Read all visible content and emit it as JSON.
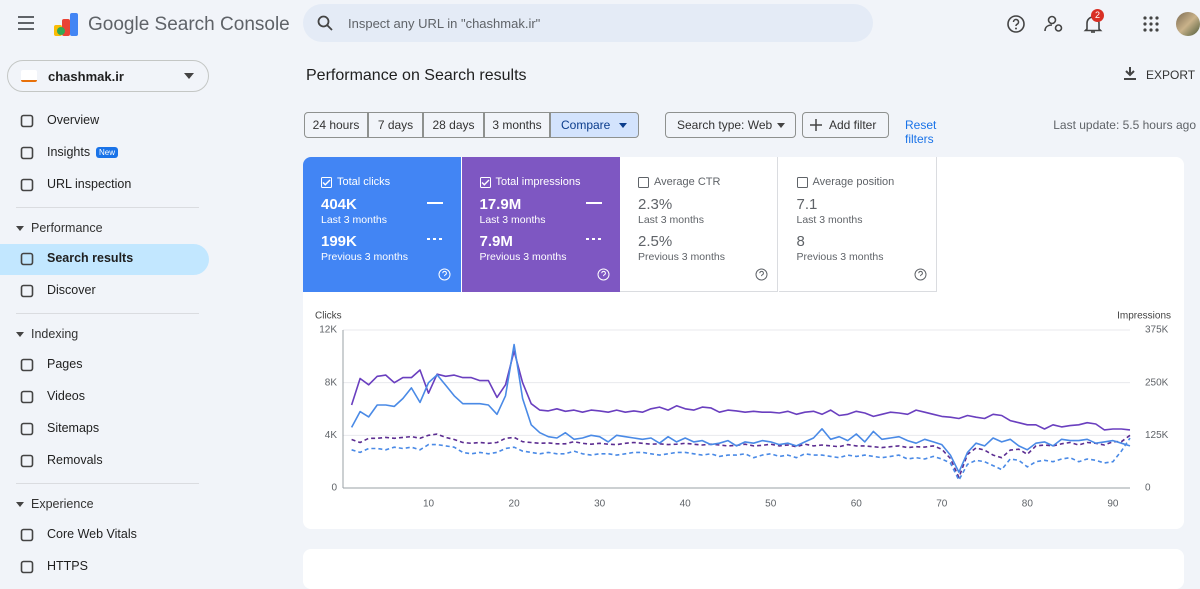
{
  "header": {
    "product": "Google Search Console",
    "search_placeholder": "Inspect any URL in \"chashmak.ir\"",
    "notifications": 2
  },
  "property": "chashmak.ir",
  "nav": [
    {
      "items": [
        {
          "label": "Overview"
        },
        {
          "label": "Insights",
          "badge": "New"
        },
        {
          "label": "URL inspection"
        }
      ]
    },
    {
      "section": "Performance",
      "items": [
        {
          "label": "Search results",
          "active": true
        },
        {
          "label": "Discover"
        }
      ]
    },
    {
      "section": "Indexing",
      "items": [
        {
          "label": "Pages"
        },
        {
          "label": "Videos"
        },
        {
          "label": "Sitemaps"
        },
        {
          "label": "Removals"
        }
      ]
    },
    {
      "section": "Experience",
      "items": [
        {
          "label": "Core Web Vitals"
        },
        {
          "label": "HTTPS"
        }
      ]
    }
  ],
  "page_title": "Performance on Search results",
  "export": "EXPORT",
  "filters": {
    "ranges": [
      "24 hours",
      "7 days",
      "28 days",
      "3 months"
    ],
    "compare": "Compare",
    "search_type": "Search type: Web",
    "add_filter": "Add filter",
    "reset": "Reset filters",
    "last_update": "Last update: 5.5 hours ago"
  },
  "metrics": [
    {
      "label": "Total clicks",
      "current": "404K",
      "current_period": "Last 3 months",
      "previous": "199K",
      "previous_period": "Previous 3 months",
      "selected": true,
      "color": "#4285f4"
    },
    {
      "label": "Total impressions",
      "current": "17.9M",
      "current_period": "Last 3 months",
      "previous": "7.9M",
      "previous_period": "Previous 3 months",
      "selected": true,
      "color": "#7e57c2"
    },
    {
      "label": "Average CTR",
      "current": "2.3%",
      "current_period": "Last 3 months",
      "previous": "2.5%",
      "previous_period": "Previous 3 months",
      "selected": false,
      "color": "#5f6368"
    },
    {
      "label": "Average position",
      "current": "7.1",
      "current_period": "Last 3 months",
      "previous": "8",
      "previous_period": "Previous 3 months",
      "selected": false,
      "color": "#5f6368"
    }
  ],
  "chart_data": {
    "type": "line",
    "y_label": "Clicks",
    "y2_label": "Impressions",
    "grid": true,
    "x": [
      1,
      2,
      3,
      4,
      5,
      6,
      7,
      8,
      9,
      10,
      11,
      12,
      13,
      14,
      15,
      16,
      17,
      18,
      19,
      20,
      21,
      22,
      23,
      24,
      25,
      26,
      27,
      28,
      29,
      30,
      31,
      32,
      33,
      34,
      35,
      36,
      37,
      38,
      39,
      40,
      41,
      42,
      43,
      44,
      45,
      46,
      47,
      48,
      49,
      50,
      51,
      52,
      53,
      54,
      55,
      56,
      57,
      58,
      59,
      60,
      61,
      62,
      63,
      64,
      65,
      66,
      67,
      68,
      69,
      70,
      71,
      72,
      73,
      74,
      75,
      76,
      77,
      78,
      79,
      80,
      81,
      82,
      83,
      84,
      85,
      86,
      87,
      88,
      89,
      90,
      91,
      92
    ],
    "xlim": [
      0,
      92
    ],
    "xticks": [
      10,
      20,
      30,
      40,
      50,
      60,
      70,
      80,
      90
    ],
    "ylim": [
      0,
      12000
    ],
    "yticks": [
      0,
      {
        "value": 4000,
        "label": "4K"
      },
      {
        "value": 8000,
        "label": "8K"
      },
      {
        "value": 12000,
        "label": "12K"
      }
    ],
    "y2lim": [
      0,
      375000
    ],
    "y2ticks": [
      0,
      {
        "value": 125000,
        "label": "125K"
      },
      {
        "value": 250000,
        "label": "250K"
      },
      {
        "value": 375000,
        "label": "375K"
      }
    ],
    "series": [
      {
        "color": "#6a3fbf",
        "axis": "y2",
        "dashed": false,
        "values": [
          197000,
          260000,
          245000,
          265000,
          268000,
          250000,
          262000,
          262000,
          280000,
          225000,
          270000,
          265000,
          268000,
          262000,
          262000,
          255000,
          255000,
          215000,
          245000,
          325000,
          250000,
          200000,
          185000,
          183000,
          188000,
          182000,
          185000,
          180000,
          185000,
          183000,
          180000,
          185000,
          180000,
          183000,
          180000,
          188000,
          192000,
          185000,
          195000,
          188000,
          185000,
          192000,
          190000,
          180000,
          185000,
          183000,
          180000,
          182000,
          180000,
          180000,
          178000,
          182000,
          175000,
          180000,
          182000,
          175000,
          185000,
          172000,
          175000,
          182000,
          178000,
          170000,
          175000,
          180000,
          178000,
          175000,
          185000,
          180000,
          175000,
          170000,
          168000,
          165000,
          172000,
          168000,
          165000,
          175000,
          172000,
          160000,
          155000,
          150000,
          150000,
          140000,
          150000,
          145000,
          148000,
          150000,
          155000,
          152000,
          138000,
          140000,
          140000,
          138000
        ]
      },
      {
        "color": "#5c2d91",
        "axis": "y2",
        "dashed": true,
        "values": [
          115000,
          108000,
          118000,
          118000,
          120000,
          118000,
          120000,
          122000,
          118000,
          125000,
          128000,
          120000,
          115000,
          108000,
          106000,
          108000,
          106000,
          108000,
          118000,
          120000,
          110000,
          108000,
          106000,
          107000,
          105000,
          105000,
          110000,
          106000,
          104000,
          106000,
          104000,
          103000,
          106000,
          108000,
          106000,
          104000,
          105000,
          103000,
          104000,
          106000,
          104000,
          102000,
          104000,
          102000,
          100000,
          101000,
          104000,
          100000,
          101000,
          104000,
          100000,
          102000,
          98000,
          104000,
          100000,
          102000,
          100000,
          98000,
          103000,
          100000,
          100000,
          98000,
          96000,
          98000,
          100000,
          96000,
          98000,
          97000,
          100000,
          92000,
          70000,
          25000,
          80000,
          95000,
          90000,
          78000,
          72000,
          90000,
          92000,
          80000,
          100000,
          102000,
          100000,
          105000,
          108000,
          102000,
          108000,
          106000,
          102000,
          110000,
          110000,
          125000
        ]
      },
      {
        "color": "#4a8ae6",
        "dashed": false,
        "values": [
          4600,
          5800,
          5400,
          6300,
          6300,
          6200,
          6800,
          7600,
          6500,
          8000,
          8600,
          7800,
          7000,
          6400,
          6400,
          6400,
          6300,
          5600,
          7000,
          10900,
          6800,
          4800,
          4200,
          3900,
          3800,
          4200,
          3700,
          3800,
          4000,
          3900,
          3500,
          4000,
          3900,
          3800,
          3700,
          3800,
          3400,
          3900,
          3500,
          3800,
          3500,
          3600,
          3300,
          3400,
          3600,
          3200,
          3500,
          3400,
          3600,
          3500,
          3300,
          3400,
          3200,
          3500,
          3800,
          4500,
          3700,
          3900,
          3600,
          4100,
          3500,
          4300,
          3700,
          3800,
          3900,
          3600,
          3400,
          3700,
          3500,
          3300,
          2500,
          1200,
          2700,
          3400,
          3200,
          3800,
          3500,
          3700,
          3200,
          2900,
          3400,
          3500,
          3200,
          3700,
          3600,
          3600,
          3700,
          3400,
          3500,
          3600,
          3400,
          3200
        ]
      },
      {
        "color": "#4a8ae6",
        "dashed": true,
        "values": [
          2900,
          2700,
          3000,
          3000,
          2900,
          3100,
          3000,
          3100,
          2900,
          3300,
          3300,
          3200,
          3100,
          2700,
          2600,
          2700,
          2600,
          2700,
          3000,
          3100,
          2800,
          2700,
          2600,
          2700,
          2600,
          2600,
          2800,
          2600,
          2500,
          2600,
          2600,
          2500,
          2600,
          2700,
          2700,
          2600,
          2500,
          2600,
          2700,
          2700,
          2600,
          2500,
          2600,
          2400,
          2500,
          2500,
          2600,
          2300,
          2500,
          2600,
          2400,
          2500,
          2300,
          2600,
          2500,
          2500,
          2400,
          2300,
          2500,
          2400,
          2500,
          2400,
          2300,
          2400,
          2500,
          2200,
          2300,
          2200,
          2400,
          2200,
          1900,
          600,
          1800,
          2100,
          2000,
          1700,
          1400,
          2200,
          2100,
          1600,
          2000,
          2100,
          2000,
          2200,
          2300,
          2000,
          2200,
          2100,
          1900,
          2000,
          2800,
          3800
        ]
      }
    ]
  }
}
